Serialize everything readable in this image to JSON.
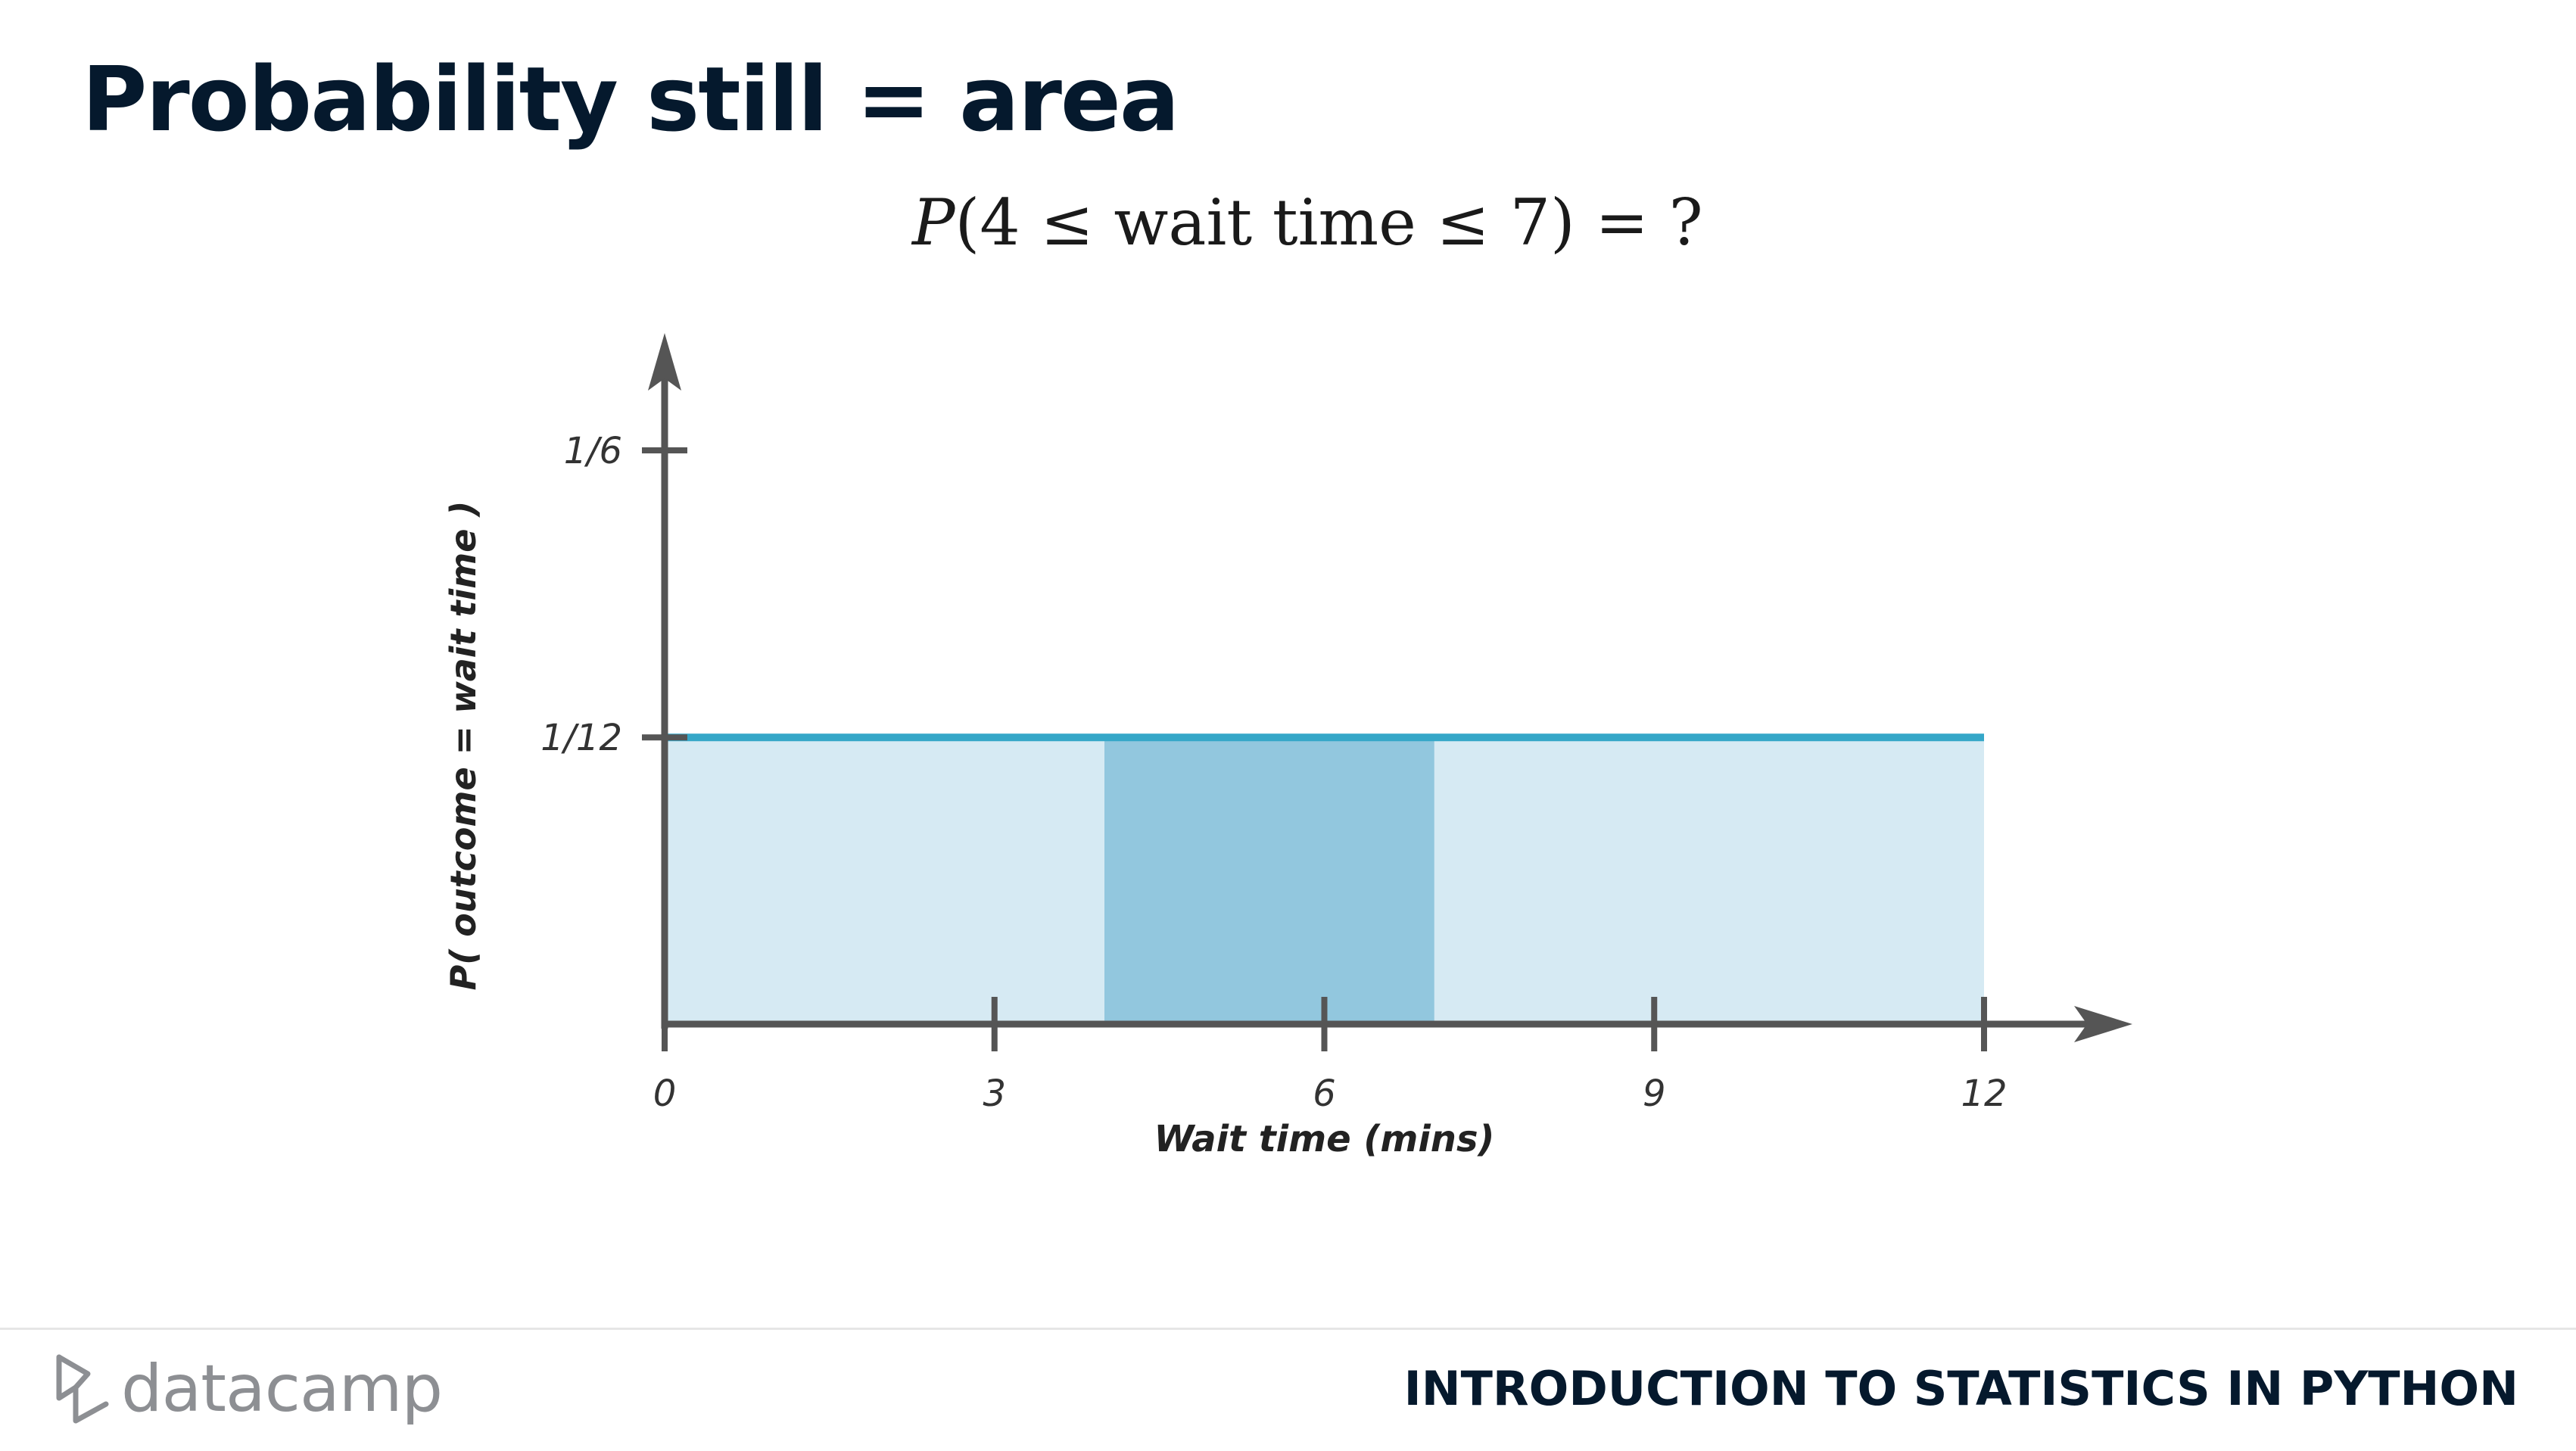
{
  "slide": {
    "title": "Probability still = area",
    "formula": {
      "p": "P",
      "body": "(4 ≤ wait time ≤ 7) =  ?"
    }
  },
  "footer": {
    "brand": "datacamp",
    "course": "INTRODUCTION TO STATISTICS IN PYTHON"
  },
  "colors": {
    "title": "#05192d",
    "axis": "#555555",
    "density_line": "#35a7c8",
    "area_fill": "#d6eaf3",
    "highlight_fill": "#92c7de",
    "logo": "#8d8f93"
  },
  "chart_data": {
    "type": "area",
    "title": "",
    "xlabel": "Wait time (mins)",
    "ylabel": "P( outcome  = wait time )",
    "xlim": [
      0,
      12
    ],
    "ylim": [
      0,
      0.1667
    ],
    "x_ticks": [
      {
        "value": 0,
        "label": "0"
      },
      {
        "value": 3,
        "label": "3"
      },
      {
        "value": 6,
        "label": "6"
      },
      {
        "value": 9,
        "label": "9"
      },
      {
        "value": 12,
        "label": "12"
      }
    ],
    "y_ticks": [
      {
        "value": 0.0833,
        "label": "1/12"
      },
      {
        "value": 0.1667,
        "label": "1/6"
      }
    ],
    "series": [
      {
        "x": [
          0,
          12
        ],
        "y": [
          0.0833,
          0.0833
        ]
      }
    ],
    "highlight": {
      "x_start": 4,
      "x_end": 7
    },
    "grid": false,
    "legend": "none"
  }
}
